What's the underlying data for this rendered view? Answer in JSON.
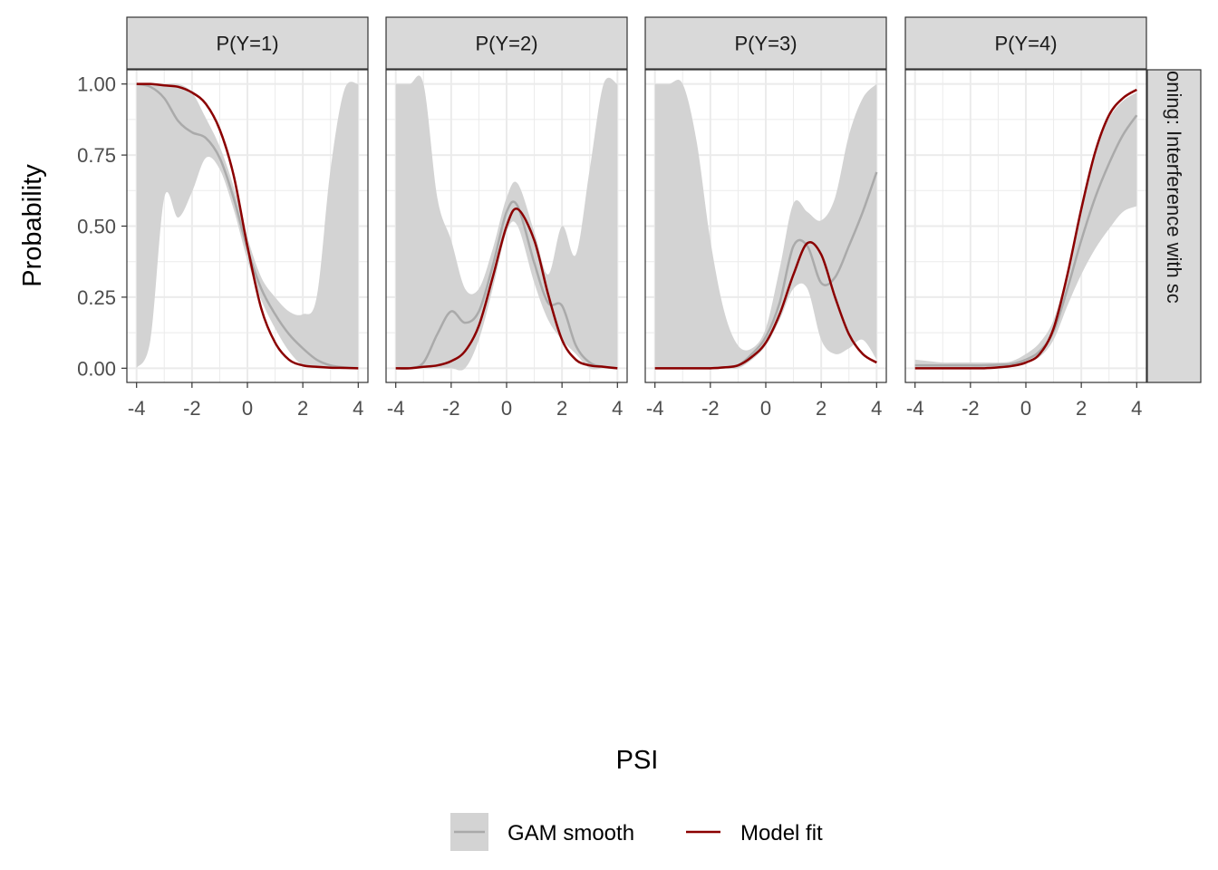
{
  "chart_data": {
    "type": "line",
    "facet_labels": [
      "P(Y=1)",
      "P(Y=2)",
      "P(Y=3)",
      "P(Y=4)"
    ],
    "row_strip_label": "oning: Interference with sc",
    "xlabel": "PSI",
    "ylabel": "Probability",
    "xlim": [
      -4.35,
      4.35
    ],
    "ylim": [
      -0.05,
      1.05
    ],
    "x_ticks": [
      -4,
      -2,
      0,
      2,
      4
    ],
    "x_tick_labels": [
      "-4",
      "-2",
      "0",
      "2",
      "4"
    ],
    "y_ticks": [
      0,
      0.25,
      0.5,
      0.75,
      1
    ],
    "y_tick_labels": [
      "0.00",
      "0.25",
      "0.50",
      "0.75",
      "1.00"
    ],
    "grid": true,
    "legend_position": "bottom",
    "legend": [
      {
        "label": "GAM smooth",
        "key": "gam"
      },
      {
        "label": "Model fit",
        "key": "model"
      }
    ],
    "colors": {
      "model_line": "#8b0000",
      "gam_line": "#aaaaaa",
      "ribbon": "#d3d3d3",
      "panel_border": "#333333",
      "grid": "#ebebeb",
      "strip_fill": "#d9d9d9"
    },
    "panels": [
      {
        "label": "P(Y=1)",
        "model_fit": {
          "x": [
            -4.0,
            -3.5,
            -3.0,
            -2.5,
            -2.0,
            -1.5,
            -1.0,
            -0.5,
            0.0,
            0.5,
            1.0,
            1.5,
            2.0,
            2.5,
            3.0,
            3.5,
            4.0
          ],
          "y": [
            1.0,
            1.0,
            0.995,
            0.99,
            0.97,
            0.93,
            0.84,
            0.68,
            0.43,
            0.21,
            0.09,
            0.03,
            0.01,
            0.005,
            0.002,
            0.001,
            0.0
          ]
        },
        "gam_smooth": {
          "x": [
            -4.0,
            -3.5,
            -3.0,
            -2.5,
            -2.0,
            -1.5,
            -1.0,
            -0.5,
            0.0,
            0.5,
            1.0,
            1.5,
            2.0,
            2.5,
            3.0,
            3.5,
            4.0
          ],
          "y": [
            1.0,
            0.99,
            0.95,
            0.87,
            0.83,
            0.81,
            0.74,
            0.6,
            0.42,
            0.28,
            0.19,
            0.12,
            0.07,
            0.03,
            0.01,
            0.003,
            0.0
          ]
        },
        "ribbon_upper": [
          1.0,
          1.0,
          1.0,
          1.0,
          0.97,
          0.88,
          0.78,
          0.64,
          0.46,
          0.32,
          0.25,
          0.2,
          0.19,
          0.25,
          0.7,
          0.98,
          1.0
        ],
        "ribbon_lower": [
          0.0,
          0.1,
          0.6,
          0.53,
          0.62,
          0.74,
          0.7,
          0.56,
          0.38,
          0.24,
          0.14,
          0.06,
          0.01,
          0.0,
          0.0,
          0.0,
          0.0
        ]
      },
      {
        "label": "P(Y=2)",
        "model_fit": {
          "x": [
            -4.0,
            -3.5,
            -3.0,
            -2.5,
            -2.0,
            -1.5,
            -1.0,
            -0.5,
            0.0,
            0.4,
            1.0,
            1.5,
            2.0,
            2.5,
            3.0,
            3.5,
            4.0
          ],
          "y": [
            0.0,
            0.0,
            0.005,
            0.01,
            0.025,
            0.06,
            0.15,
            0.32,
            0.5,
            0.56,
            0.45,
            0.26,
            0.1,
            0.03,
            0.01,
            0.005,
            0.0
          ]
        },
        "gam_smooth": {
          "x": [
            -4.0,
            -3.5,
            -3.0,
            -2.5,
            -2.0,
            -1.5,
            -1.0,
            -0.5,
            0.0,
            0.4,
            1.0,
            1.5,
            2.0,
            2.5,
            3.0,
            3.5,
            4.0
          ],
          "y": [
            0.0,
            0.0,
            0.02,
            0.12,
            0.2,
            0.16,
            0.2,
            0.36,
            0.55,
            0.57,
            0.37,
            0.23,
            0.22,
            0.08,
            0.02,
            0.005,
            0.0
          ]
        },
        "ribbon_upper": [
          1.0,
          1.0,
          1.0,
          0.6,
          0.45,
          0.28,
          0.28,
          0.42,
          0.6,
          0.65,
          0.48,
          0.33,
          0.5,
          0.4,
          0.7,
          1.0,
          1.0
        ],
        "ribbon_lower": [
          0.0,
          0.0,
          0.0,
          0.0,
          0.0,
          0.0,
          0.1,
          0.28,
          0.48,
          0.5,
          0.3,
          0.17,
          0.1,
          0.05,
          0.0,
          0.0,
          0.0
        ]
      },
      {
        "label": "P(Y=3)",
        "model_fit": {
          "x": [
            -4.0,
            -3.5,
            -3.0,
            -2.5,
            -2.0,
            -1.5,
            -1.0,
            -0.5,
            0.0,
            0.5,
            1.0,
            1.5,
            2.0,
            2.5,
            3.0,
            3.5,
            4.0
          ],
          "y": [
            0.0,
            0.0,
            0.0,
            0.0,
            0.0,
            0.003,
            0.01,
            0.04,
            0.09,
            0.19,
            0.33,
            0.44,
            0.4,
            0.25,
            0.12,
            0.05,
            0.02
          ]
        },
        "gam_smooth": {
          "x": [
            -4.0,
            -3.5,
            -3.0,
            -2.5,
            -2.0,
            -1.5,
            -1.0,
            -0.5,
            0.0,
            0.5,
            1.0,
            1.5,
            2.0,
            2.5,
            3.0,
            3.5,
            4.0
          ],
          "y": [
            0.0,
            0.0,
            0.0,
            0.0,
            0.0,
            0.003,
            0.01,
            0.05,
            0.11,
            0.23,
            0.43,
            0.43,
            0.3,
            0.32,
            0.43,
            0.55,
            0.69
          ]
        },
        "ribbon_upper": [
          1.0,
          1.0,
          1.0,
          0.8,
          0.45,
          0.2,
          0.08,
          0.07,
          0.14,
          0.35,
          0.58,
          0.55,
          0.52,
          0.6,
          0.82,
          0.95,
          1.0
        ],
        "ribbon_lower": [
          0.0,
          0.0,
          0.0,
          0.0,
          0.0,
          0.0,
          0.0,
          0.03,
          0.08,
          0.17,
          0.28,
          0.28,
          0.1,
          0.05,
          0.07,
          0.1,
          0.03
        ]
      },
      {
        "label": "P(Y=4)",
        "model_fit": {
          "x": [
            -4.0,
            -3.5,
            -3.0,
            -2.5,
            -2.0,
            -1.5,
            -1.0,
            -0.5,
            0.0,
            0.5,
            1.0,
            1.5,
            2.0,
            2.5,
            3.0,
            3.5,
            4.0
          ],
          "y": [
            0.0,
            0.0,
            0.0,
            0.0,
            0.0,
            0.0,
            0.003,
            0.008,
            0.02,
            0.05,
            0.14,
            0.33,
            0.56,
            0.76,
            0.89,
            0.95,
            0.98
          ]
        },
        "gam_smooth": {
          "x": [
            -4.0,
            -3.5,
            -3.0,
            -2.5,
            -2.0,
            -1.5,
            -1.0,
            -0.5,
            0.0,
            0.5,
            1.0,
            1.5,
            2.0,
            2.5,
            3.0,
            3.5,
            4.0
          ],
          "y": [
            0.01,
            0.01,
            0.01,
            0.01,
            0.01,
            0.01,
            0.012,
            0.015,
            0.03,
            0.06,
            0.13,
            0.28,
            0.45,
            0.6,
            0.72,
            0.82,
            0.89
          ]
        },
        "ribbon_upper": [
          0.03,
          0.025,
          0.02,
          0.02,
          0.02,
          0.02,
          0.02,
          0.025,
          0.05,
          0.09,
          0.17,
          0.34,
          0.58,
          0.77,
          0.88,
          0.94,
          0.97
        ],
        "ribbon_lower": [
          0.0,
          0.0,
          0.0,
          0.0,
          0.0,
          0.0,
          0.005,
          0.008,
          0.02,
          0.04,
          0.1,
          0.22,
          0.33,
          0.42,
          0.49,
          0.55,
          0.57
        ]
      }
    ]
  }
}
